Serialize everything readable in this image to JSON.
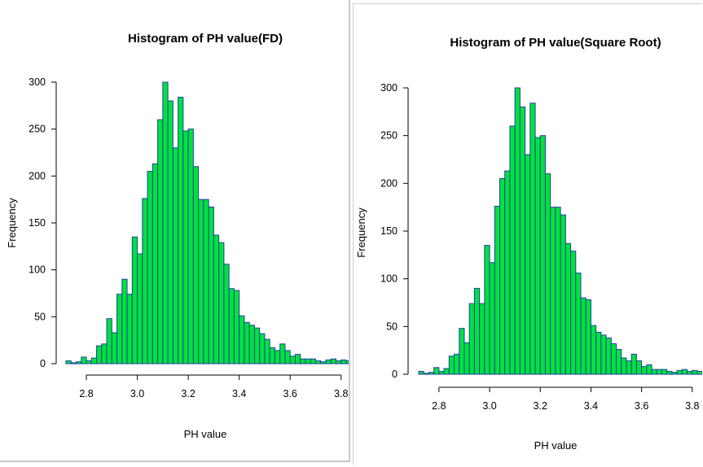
{
  "chart_data": [
    {
      "type": "bar",
      "title": "Histogram of PH value(FD)",
      "xlabel": "PH value",
      "ylabel": "Frequency",
      "xlim": [
        2.72,
        3.82
      ],
      "ylim": [
        0,
        300
      ],
      "xticks": [
        "2.8",
        "3.0",
        "3.2",
        "3.4",
        "3.6",
        "3.8"
      ],
      "yticks": [
        "0",
        "50",
        "100",
        "150",
        "200",
        "250",
        "300"
      ],
      "bin_start": 2.72,
      "bin_width": 0.02,
      "bar_color": "#00e33b",
      "edge_color": "#1f3fa8",
      "values": [
        3,
        1,
        2,
        7,
        3,
        6,
        19,
        21,
        48,
        33,
        74,
        90,
        74,
        135,
        117,
        176,
        205,
        213,
        260,
        300,
        280,
        230,
        284,
        248,
        250,
        210,
        175,
        175,
        167,
        137,
        129,
        106,
        80,
        78,
        51,
        44,
        41,
        38,
        32,
        26,
        17,
        14,
        21,
        14,
        8,
        10,
        5,
        5,
        5,
        3,
        2,
        4,
        5,
        3,
        4,
        3
      ]
    },
    {
      "type": "bar",
      "title": "Histogram of PH value(Square Root)",
      "xlabel": "PH value",
      "ylabel": "Frequency",
      "xlim": [
        2.72,
        3.82
      ],
      "ylim": [
        0,
        300
      ],
      "xticks": [
        "2.8",
        "3.0",
        "3.2",
        "3.4",
        "3.6",
        "3.8"
      ],
      "yticks": [
        "0",
        "50",
        "100",
        "150",
        "200",
        "250",
        "300"
      ],
      "bin_start": 2.72,
      "bin_width": 0.02,
      "bar_color": "#00e33b",
      "edge_color": "#1f3fa8",
      "values": [
        3,
        1,
        2,
        7,
        3,
        6,
        19,
        21,
        48,
        33,
        74,
        90,
        74,
        135,
        117,
        176,
        205,
        213,
        260,
        300,
        280,
        230,
        284,
        248,
        250,
        210,
        175,
        175,
        167,
        137,
        129,
        106,
        80,
        78,
        51,
        44,
        41,
        38,
        32,
        26,
        17,
        14,
        21,
        14,
        8,
        10,
        5,
        5,
        5,
        3,
        2,
        4,
        5,
        3,
        4,
        3
      ]
    }
  ]
}
